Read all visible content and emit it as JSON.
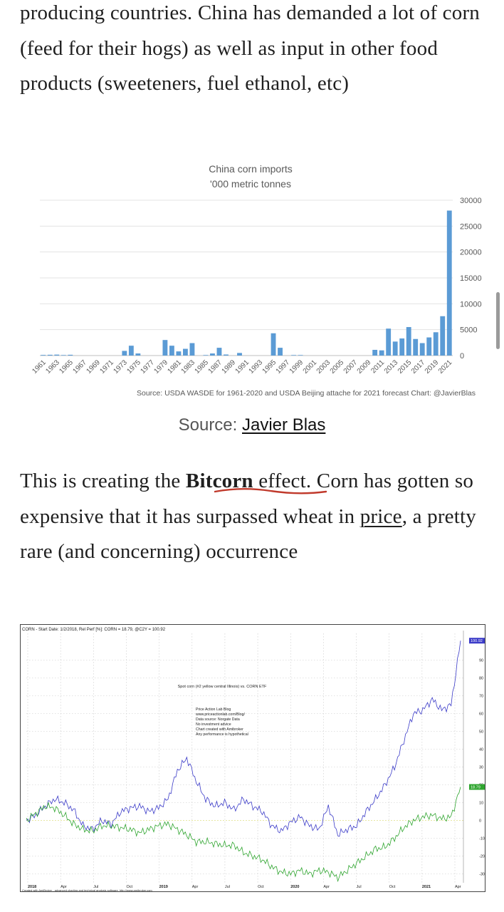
{
  "article": {
    "para1": "producing countries. China has demanded a lot of corn (feed for their hogs) as well as input in other food products (sweeteners, fuel ethanol, etc)",
    "para2_before": "This is creating the ",
    "para2_bold": "Bitcorn",
    "para2_mid1": " effect. Corn has gotten so expensive that it has surpassed wheat in ",
    "para2_link": "price",
    "para2_after": ", a pretty rare (and concerning) occurrence",
    "caption_prefix": "Source: ",
    "caption_link": "Javier Blas"
  },
  "chart_data": [
    {
      "type": "bar",
      "title": "China corn imports",
      "subtitle": "'000 metric tonnes",
      "source_note": "Source: USDA WASDE for 1961-2020 and USDA Beijing attache for 2021 forecast   Chart: @JavierBlas",
      "color": "#5b9bd5",
      "ylim": [
        0,
        30000
      ],
      "yticks": [
        0,
        5000,
        10000,
        15000,
        20000,
        25000,
        30000
      ],
      "xtick_labels": [
        "1961",
        "1963",
        "1965",
        "1967",
        "1969",
        "1971",
        "1973",
        "1975",
        "1977",
        "1979",
        "1981",
        "1983",
        "1985",
        "1987",
        "1989",
        "1991",
        "1993",
        "1995",
        "1997",
        "1999",
        "2001",
        "2003",
        "2005",
        "2007",
        "2009",
        "2011",
        "2013",
        "2015",
        "2017",
        "2019",
        "2021"
      ],
      "categories": [
        1961,
        1962,
        1963,
        1964,
        1965,
        1966,
        1967,
        1968,
        1969,
        1970,
        1971,
        1972,
        1973,
        1974,
        1975,
        1976,
        1977,
        1978,
        1979,
        1980,
        1981,
        1982,
        1983,
        1984,
        1985,
        1986,
        1987,
        1988,
        1989,
        1990,
        1991,
        1992,
        1993,
        1994,
        1995,
        1996,
        1997,
        1998,
        1999,
        2000,
        2001,
        2002,
        2003,
        2004,
        2005,
        2006,
        2007,
        2008,
        2009,
        2010,
        2011,
        2012,
        2013,
        2014,
        2015,
        2016,
        2017,
        2018,
        2019,
        2020,
        2021
      ],
      "values": [
        120,
        150,
        180,
        100,
        150,
        0,
        0,
        0,
        0,
        0,
        0,
        0,
        900,
        1900,
        400,
        0,
        0,
        0,
        3000,
        1900,
        800,
        1300,
        2400,
        0,
        100,
        400,
        1500,
        200,
        0,
        500,
        0,
        0,
        0,
        0,
        4300,
        1500,
        0,
        100,
        100,
        0,
        0,
        0,
        0,
        0,
        0,
        0,
        0,
        0,
        0,
        1100,
        1000,
        5200,
        2700,
        3300,
        5500,
        3200,
        2400,
        3500,
        4500,
        7600,
        28000
      ]
    },
    {
      "type": "line",
      "header": "CORN - Start Date: 1/2/2018, Rel Perf [%]: CORN = 18.79, @C2Y = 100.92",
      "notes_title": "Spot corn (#2 yellow central Illinois) vs. CORN ETF",
      "notes": [
        "Price Action Lab Blog",
        "www.priceactionlab.com/Blog/",
        "Data source: Norgate Data",
        "No investment advice",
        "Chart created with Amibroker",
        "Any performance is hypothetical"
      ],
      "footer": "Created with AmiBroker - advanced charting and technical analysis software. http://www.amibroker.com",
      "ylim": [
        -35,
        105
      ],
      "yticks": [
        -30,
        -20,
        -10,
        0,
        10,
        20,
        30,
        40,
        50,
        60,
        70,
        80,
        90
      ],
      "x_labels": [
        "2018",
        "Apr",
        "Jul",
        "Oct",
        "2019",
        "Apr",
        "Jul",
        "Oct",
        "2020",
        "Apr",
        "Jul",
        "Oct",
        "2021",
        "Apr"
      ],
      "last_labels": [
        "100.92",
        "18.79"
      ],
      "series": [
        {
          "name": "@C2Y",
          "color": "#3b3bc8",
          "values": [
            0,
            3,
            8,
            12,
            10,
            6,
            -3,
            -5,
            0,
            -2,
            5,
            7,
            8,
            5,
            7,
            12,
            28,
            35,
            22,
            12,
            8,
            10,
            6,
            12,
            8,
            5,
            -3,
            -6,
            -1,
            2,
            -3,
            -5,
            8,
            -8,
            -5,
            -3,
            5,
            12,
            20,
            30,
            45,
            60,
            62,
            68,
            62,
            65,
            100.92
          ]
        },
        {
          "name": "CORN",
          "color": "#2fa52f",
          "values": [
            0,
            4,
            8,
            7,
            3,
            -2,
            -5,
            -6,
            -3,
            -3,
            -4,
            -5,
            -7,
            -5,
            -3,
            -2,
            -5,
            -8,
            -12,
            -12,
            -13,
            -14,
            -14,
            -18,
            -20,
            -22,
            -26,
            -29,
            -30,
            -28,
            -30,
            -28,
            -29,
            -32,
            -28,
            -24,
            -20,
            -16,
            -15,
            -10,
            -4,
            0,
            2,
            3,
            1,
            2,
            18.79
          ]
        }
      ]
    }
  ]
}
